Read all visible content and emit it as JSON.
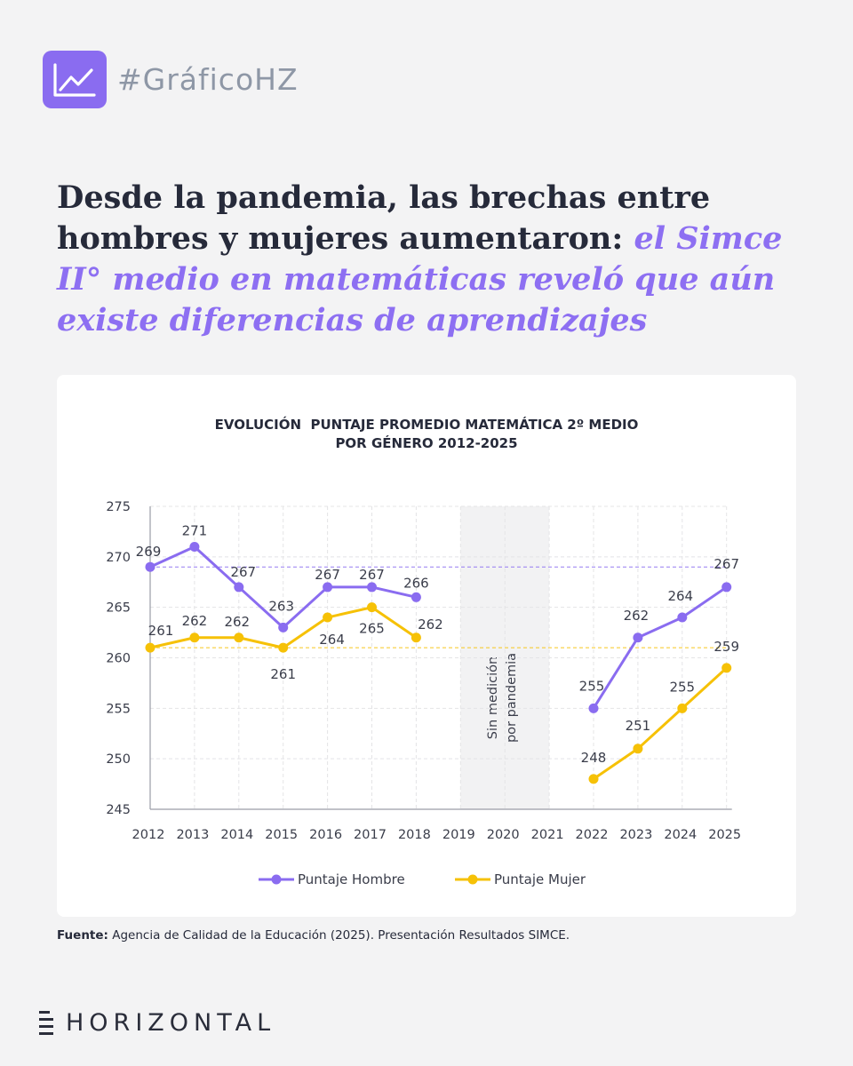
{
  "header": {
    "hashtag": "#GráficoHZ",
    "icon": "line-chart-icon",
    "accent_color": "#8a6cf0"
  },
  "headline": {
    "part1": "Desde la pandemia, las brechas entre hombres y mujeres aumentaron: ",
    "part2": "el Simce II° medio en matemáticas reveló que aún existe diferencias de aprendizajes"
  },
  "chart_data": {
    "type": "line",
    "title_line1": "EVOLUCIÓN  PUNTAJE PROMEDIO MATEMÁTICA 2º MEDIO",
    "title_line2": "POR GÉNERO 2012-2025",
    "x": [
      "2012",
      "2013",
      "2014",
      "2015",
      "2016",
      "2017",
      "2018",
      "2019",
      "2020",
      "2021",
      "2022",
      "2023",
      "2024",
      "2025"
    ],
    "ylim": [
      245,
      275
    ],
    "yticks": [
      275,
      270,
      265,
      260,
      255,
      250,
      245
    ],
    "grid": true,
    "series": [
      {
        "name": "Puntaje Hombre",
        "color": "#8a6cf0",
        "values": [
          269,
          271,
          267,
          263,
          267,
          267,
          266,
          null,
          null,
          null,
          255,
          262,
          264,
          267
        ],
        "labels": [
          "269",
          "271",
          "267",
          "263",
          "267",
          "267",
          "266",
          "",
          "",
          "",
          "255",
          "262",
          "264",
          "267"
        ]
      },
      {
        "name": "Puntaje  Mujer",
        "color": "#f6c106",
        "values": [
          261,
          262,
          262,
          261,
          264,
          265,
          262,
          null,
          null,
          null,
          248,
          251,
          255,
          259
        ],
        "labels": [
          "261",
          "262",
          "262",
          "261",
          "264",
          "265",
          "262",
          "",
          "",
          "",
          "248",
          "251",
          "255",
          "259"
        ]
      }
    ],
    "reference_lines": [
      {
        "value": 269,
        "color": "#8a6cf0"
      },
      {
        "value": 261,
        "color": "#f6c106"
      }
    ],
    "shaded_region": {
      "from": "2019",
      "to": "2021",
      "label_line1": "Sin medición",
      "label_line2": "por pandemia"
    },
    "legend_position": "bottom"
  },
  "source": {
    "label": "Fuente:",
    "text": " Agencia de Calidad de la Educación (2025). Presentación Resultados SIMCE."
  },
  "brand": {
    "name": "HORIZONTAL"
  }
}
